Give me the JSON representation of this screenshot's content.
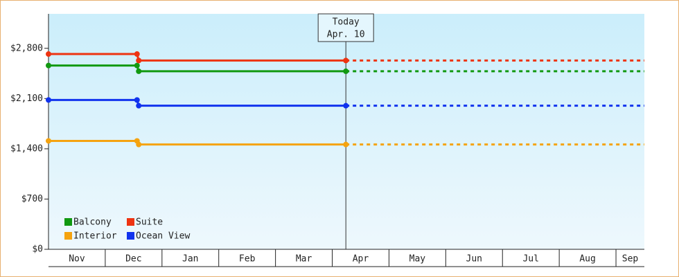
{
  "chart_data": {
    "type": "step-line",
    "categories": [
      "Nov",
      "Dec",
      "Jan",
      "Feb",
      "Mar",
      "Apr",
      "May",
      "Jun",
      "Jul",
      "Aug",
      "Sep"
    ],
    "x": [
      0,
      1.56,
      1.59,
      5.24
    ],
    "xlim": [
      0,
      10.5
    ],
    "series": [
      {
        "name": "Balcony",
        "color": "#119911",
        "values": [
          2560,
          2560,
          2480,
          2480
        ]
      },
      {
        "name": "Suite",
        "color": "#ee3311",
        "values": [
          2720,
          2720,
          2630,
          2630
        ]
      },
      {
        "name": "Interior",
        "color": "#f5a30f",
        "values": [
          1510,
          1510,
          1460,
          1460
        ]
      },
      {
        "name": "Ocean View",
        "color": "#1133ee",
        "values": [
          2080,
          2080,
          2000,
          2000
        ]
      }
    ],
    "ylim": [
      0,
      3280
    ],
    "yticks": [
      {
        "value": 0,
        "label": "$0"
      },
      {
        "value": 700,
        "label": "$700"
      },
      {
        "value": 1400,
        "label": "$1,400"
      },
      {
        "value": 2100,
        "label": "$2,100"
      },
      {
        "value": 2800,
        "label": "$2,800"
      }
    ],
    "annotation": {
      "lines": [
        "Today",
        "Apr. 10"
      ],
      "x": 5.24
    },
    "legend": "bottom-left",
    "projection": "dashed"
  }
}
